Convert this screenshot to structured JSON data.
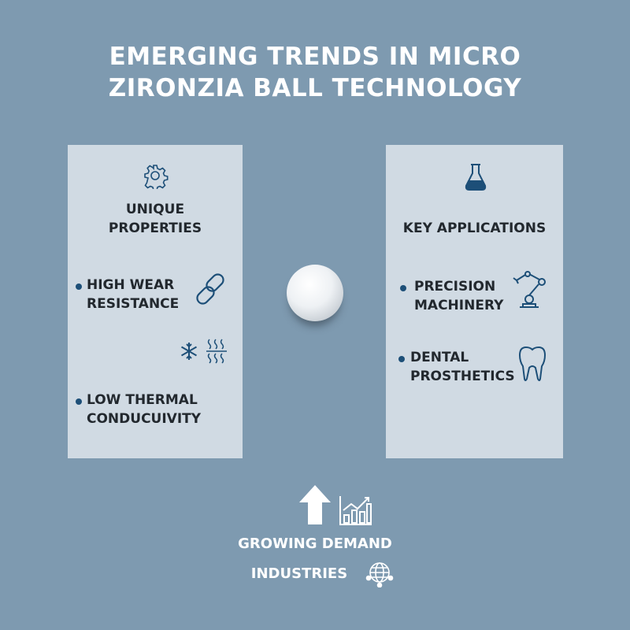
{
  "title": {
    "line1": "EMERGING TRENDS IN MICRO",
    "line2": "ZIRONZIA BALL TECHNOLOGY"
  },
  "left_panel": {
    "heading_line1": "UNIQUE",
    "heading_line2": "PROPERTIES",
    "icon": "gear-icon",
    "items": [
      {
        "line1": "HIGH WEAR",
        "line2": "RESISTANCE",
        "icon": "chain-link-icon"
      },
      {
        "line1": "LOW THERMAL",
        "line2": "CONDUCUIVITY",
        "icon": "snowflake-heat-icon"
      }
    ]
  },
  "right_panel": {
    "heading": "KEY APPLICATIONS",
    "icon": "flask-icon",
    "items": [
      {
        "line1": "PRECISION",
        "line2": "MACHINERY",
        "icon": "robot-arm-icon"
      },
      {
        "line1": "DENTAL",
        "line2": "PROSTHETICS",
        "icon": "tooth-icon"
      }
    ]
  },
  "bottom": {
    "line1": "GROWING DEMAND",
    "line2": "INDUSTRIES",
    "icons": [
      "up-arrow-icon",
      "bar-chart-icon",
      "globe-icon"
    ]
  },
  "colors": {
    "background": "#7e9ab0",
    "panel": "#d0dae3",
    "accent": "#1d4f78",
    "text": "#22282e"
  }
}
